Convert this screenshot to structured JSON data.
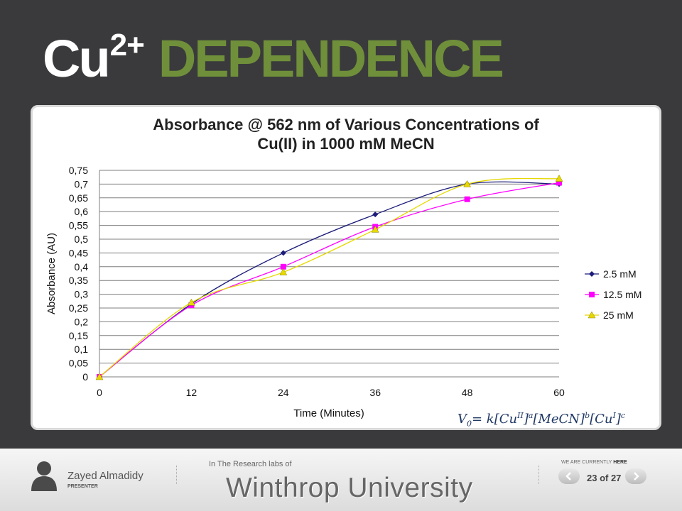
{
  "slide": {
    "title_main": "Cu",
    "title_sup": "2+",
    "title_word": "DEPENDENCE",
    "colors": {
      "background": "#3a3a3c",
      "accent_green": "#6f8f3a"
    }
  },
  "equation": {
    "v": "V",
    "v_sub": "0",
    "eq_k": "= k[Cu",
    "sup1": "II",
    "close1": "]",
    "exp_a": "a",
    "mecn": "[MeCN]",
    "exp_b": "b",
    "cu2": "[Cu",
    "sup2": "I",
    "close2": "]",
    "exp_c": "c"
  },
  "footer": {
    "presenter_name": "Zayed Almadidy",
    "presenter_role": "PRESENTER",
    "labs_text": "In The Research labs of",
    "university": "Winthrop University",
    "currently_prefix": "WE ARE CURRENTLY",
    "currently_here": "HERE",
    "page_indicator": "23 of 27",
    "icons": {
      "presenter": "person-silhouette-icon",
      "prev": "chevron-left-icon",
      "next": "chevron-right-icon"
    }
  },
  "chart_data": {
    "type": "line",
    "title_lines": [
      "Absorbance @ 562 nm of Various Concentrations of",
      "Cu(II) in 1000 mM MeCN"
    ],
    "xlabel": "Time (Minutes)",
    "ylabel": "Absorbance (AU)",
    "x": [
      0,
      12,
      24,
      36,
      48,
      60
    ],
    "x_tick_labels": [
      "0",
      "12",
      "24",
      "36",
      "48",
      "60"
    ],
    "y_tick_labels": [
      "0",
      "0,05",
      "0,1",
      "0,15",
      "0,2",
      "0,25",
      "0,3",
      "0,35",
      "0,4",
      "0,45",
      "0,5",
      "0,55",
      "0,6",
      "0,65",
      "0,7",
      "0,75"
    ],
    "xlim": [
      0,
      60
    ],
    "ylim": [
      0,
      0.75
    ],
    "grid": "horizontal",
    "legend_position": "right",
    "smooth": true,
    "series": [
      {
        "name": "2.5 mM",
        "color": "#1c1c7a",
        "marker": "diamond",
        "values": [
          0,
          0.265,
          0.45,
          0.59,
          0.7,
          0.7
        ]
      },
      {
        "name": "12.5 mM",
        "color": "#ff00ff",
        "marker": "square",
        "values": [
          0,
          0.26,
          0.4,
          0.545,
          0.645,
          0.705
        ]
      },
      {
        "name": "25 mM",
        "color": "#e6d800",
        "marker": "triangle",
        "values": [
          0,
          0.27,
          0.38,
          0.535,
          0.7,
          0.72
        ]
      }
    ]
  }
}
